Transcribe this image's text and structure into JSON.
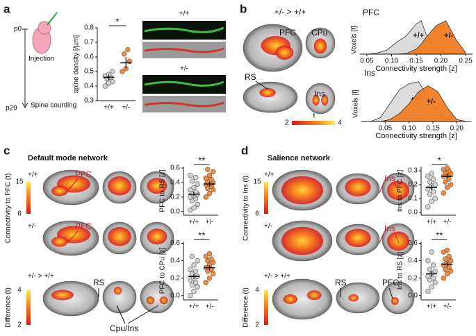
{
  "panels": {
    "a": {
      "letter": "a",
      "timeline_start": "p0",
      "timeline_end": "p29",
      "injection": "Injection",
      "spine_counting": "Spine counting",
      "image_wt": "+/+",
      "image_het": "+/-"
    },
    "b": {
      "letter": "b",
      "contrast": "+/- > +/+",
      "pfc": "PFC",
      "cpu": "CPu",
      "rs": "RS",
      "ins": "Ins",
      "colorbar_title": "t",
      "colorbar_min": "2",
      "colorbar_max": "4"
    },
    "c": {
      "letter": "c",
      "title": "Default mode network",
      "row_wt": "+/+",
      "row_het": "+/-",
      "row_diff": "+/- > +/+",
      "pfc_wt": "PFC",
      "pfc_het": "PFC",
      "rs": "RS",
      "cpu_ins": "Cpu/Ins",
      "conn_label": "Connectivity to PFC (t)",
      "conn_max": "15",
      "conn_min": "6",
      "diff_label": "Difference (t)",
      "diff_max": "4",
      "diff_min": "2"
    },
    "d": {
      "letter": "d",
      "title": "Salience network",
      "row_wt": "+/+",
      "row_het": "+/-",
      "row_diff": "+/- > +/+",
      "ins_wt": "Ins",
      "ins_het": "Ins",
      "rs": "RS",
      "pfc": "PFC",
      "conn_label": "Connectivity to Ins (t)",
      "conn_max": "15",
      "conn_min": "6",
      "diff_label": "Difference (t)",
      "diff_max": "4",
      "diff_min": "2"
    }
  },
  "chart_data": [
    {
      "type": "strip",
      "ylabel": "spine density [/µm]",
      "categories": [
        "+/+",
        "+/-"
      ],
      "annotation": "*",
      "ylim": [
        0.3,
        0.8
      ],
      "yticks": [
        0.3,
        0.4,
        0.5,
        0.6,
        0.7,
        0.8
      ],
      "groups": [
        {
          "color": "#d0d0d0",
          "values": [
            0.4,
            0.42,
            0.43,
            0.45,
            0.46,
            0.47,
            0.48,
            0.5
          ],
          "mean": 0.46,
          "sem": 0.02
        },
        {
          "color": "#f28c3c",
          "values": [
            0.5,
            0.52,
            0.57,
            0.62,
            0.65
          ],
          "mean": 0.56,
          "sem": 0.04
        }
      ]
    },
    {
      "type": "density",
      "title": "PFC",
      "ylabel": "Voxels [f]",
      "xlabel": "Connectivity strength [z]",
      "xlim": [
        0.036,
        0.264
      ],
      "xticks": [
        0.05,
        {
          "value": 0.1,
          "label": "0.10"
        },
        0.15,
        {
          "value": 0.2,
          "label": "0.20"
        },
        0.25
      ],
      "ylim": [
        0,
        1.1
      ],
      "x": [
        0.05,
        0.07,
        0.09,
        0.11,
        0.13,
        0.15,
        0.16,
        0.17,
        0.19,
        0.21,
        0.23,
        0.25
      ],
      "series": [
        {
          "name": "+/+",
          "color": "#d9d9d9",
          "values": [
            0.0,
            0.03,
            0.12,
            0.35,
            0.55,
            0.9,
            1.0,
            0.6,
            0.15,
            0.03,
            0.0,
            0.0
          ]
        },
        {
          "name": "+/-",
          "color": "#f07d23",
          "values": [
            0.0,
            0.0,
            0.0,
            0.0,
            0.02,
            0.15,
            0.3,
            0.5,
            0.85,
            1.0,
            0.45,
            0.05
          ]
        }
      ]
    },
    {
      "type": "density",
      "title": "Ins",
      "ylabel": "Voxels [f]",
      "xlabel": "Connectivity strength [z]",
      "xlim": [
        0.0,
        0.23
      ],
      "xticks": [
        0.05,
        {
          "value": 0.1,
          "label": "0.10"
        },
        0.15,
        {
          "value": 0.2,
          "label": "0.20"
        }
      ],
      "ylim": [
        0,
        1.1
      ],
      "x": [
        0.02,
        0.04,
        0.06,
        0.08,
        0.1,
        0.12,
        0.14,
        0.16,
        0.18,
        0.2,
        0.22
      ],
      "series": [
        {
          "name": "+/+",
          "color": "#d9d9d9",
          "values": [
            0.0,
            0.1,
            0.45,
            0.8,
            0.95,
            1.0,
            0.6,
            0.25,
            0.05,
            0.0,
            0.0
          ]
        },
        {
          "name": "+/-",
          "color": "#f07d23",
          "values": [
            0.0,
            0.0,
            0.05,
            0.2,
            0.45,
            0.75,
            0.9,
            0.75,
            0.35,
            0.05,
            0.0
          ]
        }
      ]
    },
    {
      "type": "strip",
      "ylabel": "PFC to RS [z]",
      "categories": [
        "+/+",
        "+/-"
      ],
      "annotation": "**",
      "ylim": [
        -0.05,
        0.62
      ],
      "yticks": [
        {
          "value": 0,
          "label": "0.0"
        },
        0.2,
        0.4,
        0.6
      ],
      "groups": [
        {
          "color": "#d0d0d0",
          "values": [
            0.02,
            0.05,
            0.1,
            0.15,
            0.18,
            0.2,
            0.22,
            0.24,
            0.25,
            0.27,
            0.3,
            0.33,
            0.38,
            0.42,
            0.47,
            0.5
          ],
          "mean": 0.24,
          "sem": 0.03
        },
        {
          "color": "#f28c3c",
          "values": [
            0.2,
            0.25,
            0.3,
            0.32,
            0.35,
            0.37,
            0.38,
            0.4,
            0.42,
            0.44,
            0.46,
            0.5,
            0.55,
            0.58
          ],
          "mean": 0.38,
          "sem": 0.03
        }
      ]
    },
    {
      "type": "strip",
      "ylabel": "PFC to CPu [z]",
      "categories": [
        "+/+",
        "+/-"
      ],
      "annotation": "**",
      "ylim": [
        -0.05,
        0.62
      ],
      "yticks": [
        {
          "value": 0,
          "label": "0.0"
        },
        0.2,
        0.4,
        0.6
      ],
      "groups": [
        {
          "color": "#d0d0d0",
          "values": [
            0.0,
            0.05,
            0.1,
            0.12,
            0.15,
            0.18,
            0.2,
            0.22,
            0.25,
            0.28,
            0.3,
            0.35,
            0.4,
            0.45
          ],
          "mean": 0.22,
          "sem": 0.03
        },
        {
          "color": "#f28c3c",
          "values": [
            0.15,
            0.2,
            0.25,
            0.28,
            0.3,
            0.32,
            0.35,
            0.38,
            0.4,
            0.42,
            0.45,
            0.48
          ],
          "mean": 0.32,
          "sem": 0.03
        }
      ]
    },
    {
      "type": "strip",
      "ylabel": "Ins to PFC [z]",
      "categories": [
        "+/+",
        "+/-"
      ],
      "annotation": "*",
      "ylim": [
        -0.02,
        0.33
      ],
      "yticks": [
        {
          "value": 0,
          "label": "0.0"
        },
        0.1,
        0.2,
        0.3
      ],
      "groups": [
        {
          "color": "#d0d0d0",
          "values": [
            0.04,
            0.08,
            0.1,
            0.13,
            0.15,
            0.17,
            0.19,
            0.2,
            0.22,
            0.24,
            0.26,
            0.28
          ],
          "mean": 0.18,
          "sem": 0.02
        },
        {
          "color": "#f28c3c",
          "values": [
            0.14,
            0.18,
            0.2,
            0.22,
            0.24,
            0.26,
            0.27,
            0.28,
            0.29,
            0.3,
            0.31,
            0.32
          ],
          "mean": 0.26,
          "sem": 0.015
        }
      ]
    },
    {
      "type": "strip",
      "ylabel": "Ins to RS [z]",
      "categories": [
        "+/+",
        "+/-"
      ],
      "annotation": "**",
      "ylim": [
        -0.05,
        0.62
      ],
      "yticks": [
        {
          "value": 0,
          "label": "0.0"
        },
        0.2,
        0.4,
        0.6
      ],
      "groups": [
        {
          "color": "#d0d0d0",
          "values": [
            0.05,
            0.1,
            0.15,
            0.18,
            0.2,
            0.22,
            0.25,
            0.28,
            0.3,
            0.35,
            0.4,
            0.5
          ],
          "mean": 0.25,
          "sem": 0.03
        },
        {
          "color": "#f28c3c",
          "values": [
            0.2,
            0.25,
            0.28,
            0.3,
            0.33,
            0.35,
            0.38,
            0.4,
            0.42,
            0.45,
            0.5,
            0.52
          ],
          "mean": 0.36,
          "sem": 0.03
        }
      ]
    }
  ]
}
